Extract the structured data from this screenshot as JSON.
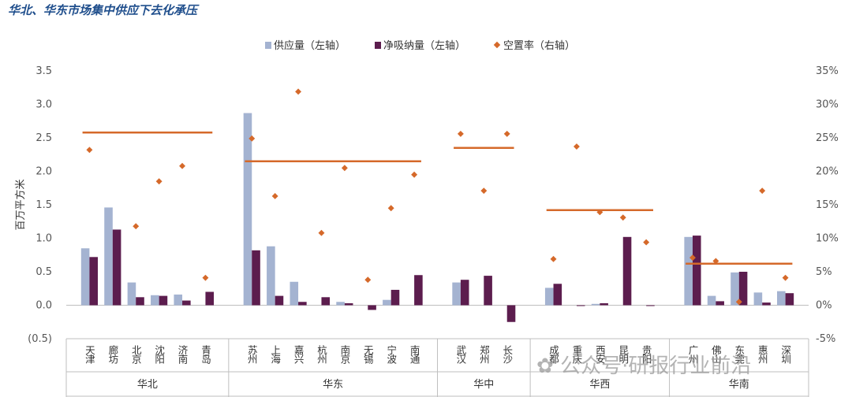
{
  "watermark": "公众号·研报行业前沿",
  "chart_data": {
    "type": "bar",
    "title": "华北、华东市场集中供应下去化承压",
    "ylabel": "百万平方米",
    "ylim": [
      -0.5,
      3.5
    ],
    "y_ticks": [
      "(0.5)",
      "0.0",
      "0.5",
      "1.0",
      "1.5",
      "2.0",
      "2.5",
      "3.0",
      "3.5"
    ],
    "y2lim": [
      -5,
      35
    ],
    "y2_ticks": [
      "-5%",
      "0%",
      "5%",
      "10%",
      "15%",
      "20%",
      "25%",
      "30%",
      "35%"
    ],
    "grid": false,
    "legend_position": "top",
    "colors": {
      "supply": "#A4B3D1",
      "absorption": "#5C1D4E",
      "vacancy": "#D5692A",
      "axis": "#BFBFBF"
    },
    "series": [
      {
        "name": "供应量（左轴）",
        "kind": "bar",
        "axis": "left"
      },
      {
        "name": "净吸纳量（左轴）",
        "kind": "bar",
        "axis": "left"
      },
      {
        "name": "空置率（右轴）",
        "kind": "marker",
        "axis": "right"
      }
    ],
    "groups": [
      {
        "name": "华北",
        "avg_vacancy": 25.8,
        "cities": [
          {
            "name": "天津",
            "supply": 0.85,
            "absorption": 0.72,
            "vacancy": 23.2
          },
          {
            "name": "廊坊",
            "supply": 1.46,
            "absorption": 1.13,
            "vacancy": null
          },
          {
            "name": "北京",
            "supply": 0.34,
            "absorption": 0.12,
            "vacancy": 11.8
          },
          {
            "name": "沈阳",
            "supply": 0.15,
            "absorption": 0.14,
            "vacancy": 18.5
          },
          {
            "name": "济南",
            "supply": 0.16,
            "absorption": 0.07,
            "vacancy": 20.8
          },
          {
            "name": "青岛",
            "supply": 0.0,
            "absorption": 0.2,
            "vacancy": 4.1
          }
        ]
      },
      {
        "name": "华东",
        "avg_vacancy": 21.5,
        "cities": [
          {
            "name": "苏州",
            "supply": 2.87,
            "absorption": 0.82,
            "vacancy": 24.9
          },
          {
            "name": "上海",
            "supply": 0.88,
            "absorption": 0.14,
            "vacancy": 16.3
          },
          {
            "name": "嘉兴",
            "supply": 0.35,
            "absorption": 0.05,
            "vacancy": 31.9
          },
          {
            "name": "杭州",
            "supply": 0.0,
            "absorption": 0.12,
            "vacancy": 10.8
          },
          {
            "name": "南京",
            "supply": 0.05,
            "absorption": 0.03,
            "vacancy": 20.5
          },
          {
            "name": "无锡",
            "supply": 0.0,
            "absorption": -0.07,
            "vacancy": 3.8
          },
          {
            "name": "宁波",
            "supply": 0.08,
            "absorption": 0.23,
            "vacancy": 14.5
          },
          {
            "name": "南通",
            "supply": 0.0,
            "absorption": 0.45,
            "vacancy": 19.5
          }
        ]
      },
      {
        "name": "华中",
        "avg_vacancy": 23.5,
        "cities": [
          {
            "name": "武汉",
            "supply": 0.34,
            "absorption": 0.38,
            "vacancy": 25.6
          },
          {
            "name": "郑州",
            "supply": 0.0,
            "absorption": 0.44,
            "vacancy": 17.1
          },
          {
            "name": "长沙",
            "supply": 0.0,
            "absorption": -0.25,
            "vacancy": 25.6
          }
        ]
      },
      {
        "name": "华西",
        "avg_vacancy": 14.2,
        "cities": [
          {
            "name": "成都",
            "supply": 0.26,
            "absorption": 0.32,
            "vacancy": 6.9
          },
          {
            "name": "重庆",
            "supply": 0.0,
            "absorption": -0.01,
            "vacancy": 23.7
          },
          {
            "name": "西安",
            "supply": 0.02,
            "absorption": 0.03,
            "vacancy": 13.9
          },
          {
            "name": "昆明",
            "supply": 0.0,
            "absorption": 1.02,
            "vacancy": 13.1
          },
          {
            "name": "贵阳",
            "supply": 0.0,
            "absorption": -0.01,
            "vacancy": 9.4
          }
        ]
      },
      {
        "name": "华南",
        "avg_vacancy": 6.2,
        "cities": [
          {
            "name": "广州",
            "supply": 1.02,
            "absorption": 1.04,
            "vacancy": 7.1
          },
          {
            "name": "佛山",
            "supply": 0.14,
            "absorption": 0.06,
            "vacancy": 6.6
          },
          {
            "name": "东莞",
            "supply": 0.49,
            "absorption": 0.5,
            "vacancy": 0.5
          },
          {
            "name": "惠州",
            "supply": 0.19,
            "absorption": 0.04,
            "vacancy": 17.1
          },
          {
            "name": "深圳",
            "supply": 0.21,
            "absorption": 0.18,
            "vacancy": 4.1
          }
        ]
      }
    ]
  }
}
